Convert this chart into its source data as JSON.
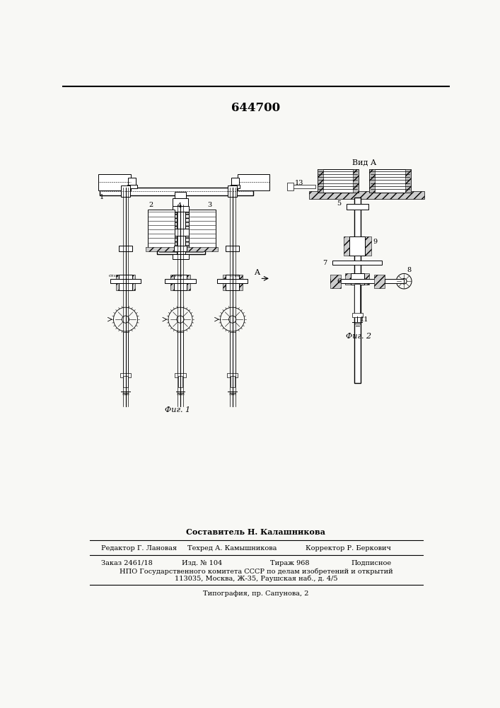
{
  "patent_number": "644700",
  "bg_color": "#f8f8f5",
  "footer": {
    "composer": "Составитель Н. Калашникова",
    "editor": "Редактор Г. Лановая",
    "techred": "Техред А. Камышникова",
    "corrector": "Корректор Р. Беркович",
    "order": "Заказ 2461/18",
    "edition": "Изд. № 104",
    "circulation": "Тираж 968",
    "subscription": "Подписное",
    "organization": "НПО Государственного комитета СССР по делам изобретений и открытий",
    "address": "113035, Москва, Ж-35, Раушская наб., д. 4/5",
    "printing": "Типография, пр. Сапунова, 2"
  }
}
